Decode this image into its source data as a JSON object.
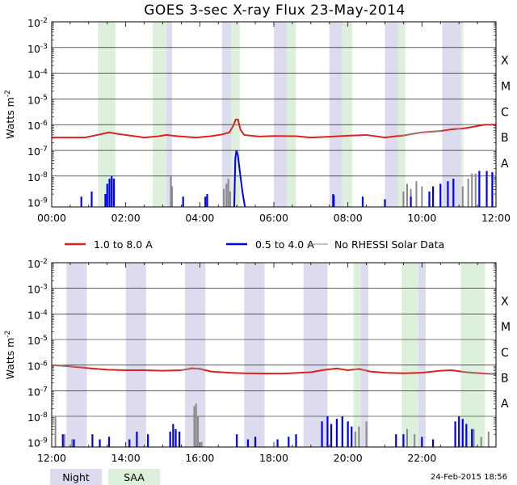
{
  "title": "GOES 3-sec X-ray Flux   23-May-2014",
  "ylabel": "Watts m",
  "ylabel_exp": "-2",
  "flare_classes": [
    "X",
    "M",
    "C",
    "B",
    "A"
  ],
  "y_ticks": [
    {
      "base": "10",
      "exp": "-2"
    },
    {
      "base": "10",
      "exp": "-3"
    },
    {
      "base": "10",
      "exp": "-4"
    },
    {
      "base": "10",
      "exp": "-5"
    },
    {
      "base": "10",
      "exp": "-6"
    },
    {
      "base": "10",
      "exp": "-7"
    },
    {
      "base": "10",
      "exp": "-8"
    },
    {
      "base": "10",
      "exp": "-9"
    }
  ],
  "legend": {
    "long": "1.0 to 8.0 A",
    "short": "0.5 to 4.0 A",
    "norhessi": "No RHESSI Solar Data",
    "night": "Night",
    "saa": "SAA"
  },
  "footer": "24-Feb-2015 18:56",
  "colors": {
    "long": "#dd2222",
    "short": "#0000ee",
    "norhessi": "#888888",
    "night": "#dcdcee",
    "saa": "#dcf0dc"
  },
  "chart_data": [
    {
      "type": "line",
      "x_ticks": [
        "00:00",
        "02:00",
        "04:00",
        "06:00",
        "08:00",
        "10:00",
        "12:00"
      ],
      "xlim_hours": [
        0,
        12
      ],
      "ylim_log10": [
        -9.2,
        -2
      ],
      "y_scale": "log",
      "night": [
        [
          3.1,
          3.25
        ],
        [
          4.6,
          4.85
        ],
        [
          6.0,
          6.35
        ],
        [
          7.5,
          7.85
        ],
        [
          9.0,
          9.35
        ],
        [
          10.55,
          11.05
        ]
      ],
      "saa": [
        [
          1.25,
          1.72
        ],
        [
          2.73,
          3.1
        ],
        [
          4.85,
          5.08
        ],
        [
          6.35,
          6.6
        ],
        [
          7.85,
          8.12
        ],
        [
          9.35,
          9.55
        ],
        [
          11.05,
          11.12
        ]
      ],
      "long": [
        [
          0.0,
          -6.5
        ],
        [
          0.9,
          -6.5
        ],
        [
          1.3,
          -6.38
        ],
        [
          1.55,
          -6.3
        ],
        [
          1.75,
          -6.35
        ],
        [
          2.1,
          -6.42
        ],
        [
          2.5,
          -6.5
        ],
        [
          2.9,
          -6.45
        ],
        [
          3.1,
          -6.4
        ],
        [
          3.4,
          -6.45
        ],
        [
          3.9,
          -6.5
        ],
        [
          4.3,
          -6.45
        ],
        [
          4.6,
          -6.38
        ],
        [
          4.8,
          -6.3
        ],
        [
          4.9,
          -6.05
        ],
        [
          4.97,
          -5.8
        ],
        [
          5.03,
          -5.8
        ],
        [
          5.1,
          -6.2
        ],
        [
          5.2,
          -6.4
        ],
        [
          5.6,
          -6.46
        ],
        [
          6.0,
          -6.44
        ],
        [
          6.6,
          -6.45
        ],
        [
          7.0,
          -6.5
        ],
        [
          7.5,
          -6.47
        ],
        [
          8.0,
          -6.43
        ],
        [
          8.5,
          -6.4
        ],
        [
          9.0,
          -6.5
        ],
        [
          9.3,
          -6.45
        ],
        [
          9.5,
          -6.42
        ],
        [
          10.0,
          -6.3
        ],
        [
          10.5,
          -6.25
        ],
        [
          10.8,
          -6.18
        ],
        [
          11.1,
          -6.15
        ],
        [
          11.4,
          -6.08
        ],
        [
          11.7,
          -6.0
        ],
        [
          12.0,
          -6.0
        ]
      ],
      "norhessi_segments": [
        [
          [
            9.3,
            -6.42
          ],
          [
            9.6,
            -6.4
          ],
          [
            10.0,
            -6.3
          ],
          [
            10.55,
            -6.25
          ]
        ],
        [
          [
            10.9,
            -6.2
          ],
          [
            11.05,
            -6.15
          ]
        ]
      ],
      "short_spikes": [
        [
          0.8,
          -8.8
        ],
        [
          1.08,
          -8.6
        ],
        [
          1.45,
          -8.7
        ],
        [
          1.5,
          -8.3
        ],
        [
          1.56,
          -8.1
        ],
        [
          1.62,
          -8.0
        ],
        [
          1.68,
          -8.1
        ],
        [
          3.55,
          -8.8
        ],
        [
          4.15,
          -8.8
        ],
        [
          4.2,
          -8.7
        ],
        [
          7.6,
          -8.7
        ],
        [
          7.62,
          -8.75
        ],
        [
          8.4,
          -8.8
        ],
        [
          9.0,
          -8.9
        ],
        [
          9.7,
          -8.8
        ],
        [
          10.2,
          -8.6
        ],
        [
          10.3,
          -8.4
        ],
        [
          10.5,
          -8.3
        ],
        [
          10.7,
          -8.2
        ],
        [
          10.85,
          -8.1
        ],
        [
          11.55,
          -7.8
        ],
        [
          11.75,
          -7.8
        ],
        [
          11.9,
          -7.85
        ]
      ],
      "short_curves": [
        [
          [
            4.93,
            -9.2
          ],
          [
            4.96,
            -7.3
          ],
          [
            4.99,
            -7.0
          ],
          [
            5.03,
            -7.2
          ],
          [
            5.08,
            -7.8
          ],
          [
            5.15,
            -8.6
          ],
          [
            5.22,
            -9.2
          ]
        ]
      ],
      "norhessi_short_spikes": [
        [
          3.22,
          -8.0
        ],
        [
          3.25,
          -8.4
        ],
        [
          4.65,
          -8.5
        ],
        [
          4.72,
          -8.3
        ],
        [
          4.77,
          -8.1
        ],
        [
          4.82,
          -8.6
        ],
        [
          9.5,
          -8.6
        ],
        [
          9.6,
          -8.3
        ],
        [
          9.7,
          -8.5
        ],
        [
          9.85,
          -8.2
        ],
        [
          10.0,
          -8.4
        ],
        [
          11.1,
          -8.4
        ],
        [
          11.25,
          -8.1
        ],
        [
          11.35,
          -7.9
        ],
        [
          11.45,
          -7.9
        ]
      ]
    },
    {
      "type": "line",
      "x_ticks": [
        "12:00",
        "14:00",
        "16:00",
        "18:00",
        "20:00",
        "22:00",
        ""
      ],
      "xlim_hours": [
        12,
        24
      ],
      "ylim_log10": [
        -9.2,
        -2
      ],
      "y_scale": "log",
      "night": [
        [
          12.4,
          12.95
        ],
        [
          14.0,
          14.55
        ],
        [
          15.6,
          16.15
        ],
        [
          17.2,
          17.75
        ],
        [
          18.8,
          19.45
        ],
        [
          20.35,
          20.55
        ],
        [
          21.9,
          22.1
        ]
      ],
      "saa": [
        [
          20.15,
          20.35
        ],
        [
          21.45,
          21.9
        ],
        [
          23.05,
          23.7
        ]
      ],
      "long": [
        [
          12.0,
          -6.0
        ],
        [
          12.5,
          -6.05
        ],
        [
          13.0,
          -6.12
        ],
        [
          13.5,
          -6.18
        ],
        [
          14.0,
          -6.2
        ],
        [
          14.5,
          -6.2
        ],
        [
          15.0,
          -6.22
        ],
        [
          15.5,
          -6.2
        ],
        [
          15.8,
          -6.12
        ],
        [
          16.0,
          -6.15
        ],
        [
          16.3,
          -6.25
        ],
        [
          16.8,
          -6.3
        ],
        [
          17.2,
          -6.32
        ],
        [
          17.8,
          -6.33
        ],
        [
          18.3,
          -6.33
        ],
        [
          18.7,
          -6.3
        ],
        [
          19.0,
          -6.28
        ],
        [
          19.3,
          -6.2
        ],
        [
          19.7,
          -6.13
        ],
        [
          20.0,
          -6.2
        ],
        [
          20.3,
          -6.15
        ],
        [
          20.6,
          -6.25
        ],
        [
          21.0,
          -6.3
        ],
        [
          21.5,
          -6.32
        ],
        [
          22.0,
          -6.3
        ],
        [
          22.5,
          -6.22
        ],
        [
          22.8,
          -6.2
        ],
        [
          23.2,
          -6.28
        ],
        [
          23.7,
          -6.33
        ],
        [
          24.0,
          -6.35
        ]
      ],
      "norhessi_segments": [
        [
          [
            12.0,
            -6.0
          ],
          [
            12.9,
            -6.08
          ]
        ],
        [
          [
            15.5,
            -6.2
          ],
          [
            15.8,
            -6.1
          ],
          [
            16.1,
            -6.2
          ]
        ],
        [
          [
            20.15,
            -6.15
          ],
          [
            20.5,
            -6.22
          ]
        ],
        [
          [
            23.05,
            -6.25
          ],
          [
            24.0,
            -6.35
          ]
        ]
      ],
      "short_spikes": [
        [
          12.3,
          -8.7
        ],
        [
          12.6,
          -8.9
        ],
        [
          13.1,
          -8.7
        ],
        [
          13.3,
          -8.9
        ],
        [
          13.55,
          -8.8
        ],
        [
          14.1,
          -8.9
        ],
        [
          14.3,
          -8.6
        ],
        [
          14.6,
          -8.7
        ],
        [
          15.2,
          -8.6
        ],
        [
          15.28,
          -8.3
        ],
        [
          15.35,
          -8.5
        ],
        [
          15.45,
          -8.6
        ],
        [
          17.0,
          -8.7
        ],
        [
          17.3,
          -8.9
        ],
        [
          17.5,
          -8.8
        ],
        [
          18.1,
          -8.9
        ],
        [
          18.4,
          -8.8
        ],
        [
          18.6,
          -8.7
        ],
        [
          19.3,
          -8.2
        ],
        [
          19.45,
          -8.0
        ],
        [
          19.55,
          -8.3
        ],
        [
          19.7,
          -8.1
        ],
        [
          19.85,
          -8.0
        ],
        [
          20.0,
          -8.2
        ],
        [
          20.1,
          -8.4
        ],
        [
          21.3,
          -8.7
        ],
        [
          21.5,
          -8.7
        ],
        [
          22.0,
          -8.8
        ],
        [
          22.3,
          -8.9
        ],
        [
          22.9,
          -8.2
        ],
        [
          23.0,
          -8.0
        ],
        [
          23.1,
          -8.1
        ],
        [
          23.2,
          -8.3
        ],
        [
          23.35,
          -8.5
        ]
      ],
      "short_curves": [],
      "norhessi_short_spikes": [
        [
          12.1,
          -8.0
        ],
        [
          12.35,
          -8.7
        ],
        [
          12.55,
          -8.9
        ],
        [
          15.85,
          -7.6
        ],
        [
          15.9,
          -7.5
        ],
        [
          15.95,
          -8.0
        ],
        [
          16.05,
          -9.0
        ],
        [
          20.2,
          -8.6
        ],
        [
          20.3,
          -8.4
        ],
        [
          20.5,
          -8.2
        ],
        [
          21.6,
          -8.5
        ],
        [
          21.8,
          -8.7
        ],
        [
          23.4,
          -8.5
        ],
        [
          23.6,
          -8.8
        ],
        [
          23.8,
          -8.6
        ]
      ]
    }
  ]
}
